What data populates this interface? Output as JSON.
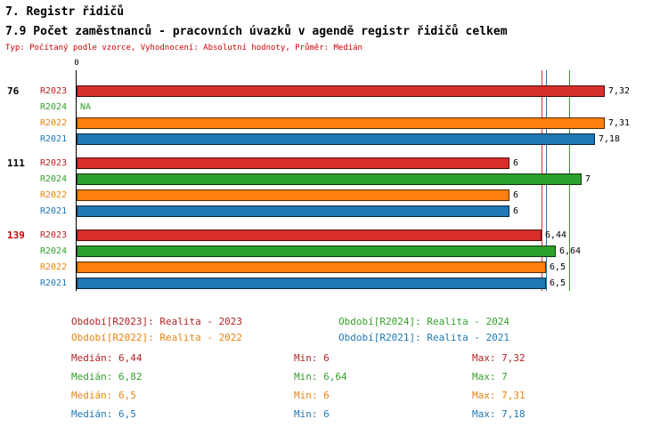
{
  "header": {
    "title": "7. Registr řidičů",
    "subtitle": "7.9 Počet zaměstnanců - pracovních úvazků v agendě registr řidičů celkem",
    "meta": "Typ: Počítaný podle vzorce, Vyhodnocení: Absolutní hodnoty, Průměr: Medián"
  },
  "colors": {
    "R2023": {
      "bar": "#d62e2a",
      "text": "#b22222"
    },
    "R2024": {
      "bar": "#2ca02c",
      "text": "#33a02c"
    },
    "R2022": {
      "bar": "#ff7f0e",
      "text": "#e8820e"
    },
    "R2021": {
      "bar": "#1f77b4",
      "text": "#1f77b4"
    }
  },
  "chart_data": {
    "type": "bar",
    "orientation": "horizontal",
    "title": "7.9 Počet zaměstnanců - pracovních úvazků v agendě registr řidičů celkem",
    "axis_origin_label": "0",
    "xlim": [
      0,
      7.55
    ],
    "value_label_color": "#000000",
    "grid": false,
    "groups": [
      {
        "label": "76",
        "label_color": "#000000",
        "bars": [
          {
            "series": "R2023",
            "value": 7.32,
            "value_label": "7,32"
          },
          {
            "series": "R2024",
            "value": null,
            "value_label": "NA"
          },
          {
            "series": "R2022",
            "value": 7.31,
            "value_label": "7,31"
          },
          {
            "series": "R2021",
            "value": 7.18,
            "value_label": "7,18"
          }
        ]
      },
      {
        "label": "111",
        "label_color": "#000000",
        "bars": [
          {
            "series": "R2023",
            "value": 6,
            "value_label": "6"
          },
          {
            "series": "R2024",
            "value": 7,
            "value_label": "7"
          },
          {
            "series": "R2022",
            "value": 6,
            "value_label": "6"
          },
          {
            "series": "R2021",
            "value": 6,
            "value_label": "6"
          }
        ]
      },
      {
        "label": "139",
        "label_color": "#cc0000",
        "bars": [
          {
            "series": "R2023",
            "value": 6.44,
            "value_label": "6,44"
          },
          {
            "series": "R2024",
            "value": 6.64,
            "value_label": "6,64"
          },
          {
            "series": "R2022",
            "value": 6.5,
            "value_label": "6,5"
          },
          {
            "series": "R2021",
            "value": 6.5,
            "value_label": "6,5"
          }
        ]
      }
    ],
    "median_lines": [
      {
        "series": "R2023",
        "value": 6.44
      },
      {
        "series": "R2022",
        "value": 6.5
      },
      {
        "series": "R2021",
        "value": 6.5
      },
      {
        "series": "R2024",
        "value": 6.82
      }
    ]
  },
  "legend": {
    "rows": [
      [
        {
          "series": "R2023",
          "text": "Období[R2023]: Realita - 2023"
        },
        {
          "series": "R2024",
          "text": "Období[R2024]: Realita - 2024"
        }
      ],
      [
        {
          "series": "R2022",
          "text": "Období[R2022]: Realita - 2022"
        },
        {
          "series": "R2021",
          "text": "Období[R2021]: Realita - 2021"
        }
      ]
    ]
  },
  "stats": {
    "rows": [
      {
        "series": "R2023",
        "median": "Medián: 6,44",
        "min": "Min: 6",
        "max": "Max: 7,32"
      },
      {
        "series": "R2024",
        "median": "Medián: 6,82",
        "min": "Min: 6,64",
        "max": "Max: 7"
      },
      {
        "series": "R2022",
        "median": "Medián: 6,5",
        "min": "Min: 6",
        "max": "Max: 7,31"
      },
      {
        "series": "R2021",
        "median": "Medián: 6,5",
        "min": "Min: 6",
        "max": "Max: 7,18"
      }
    ]
  }
}
